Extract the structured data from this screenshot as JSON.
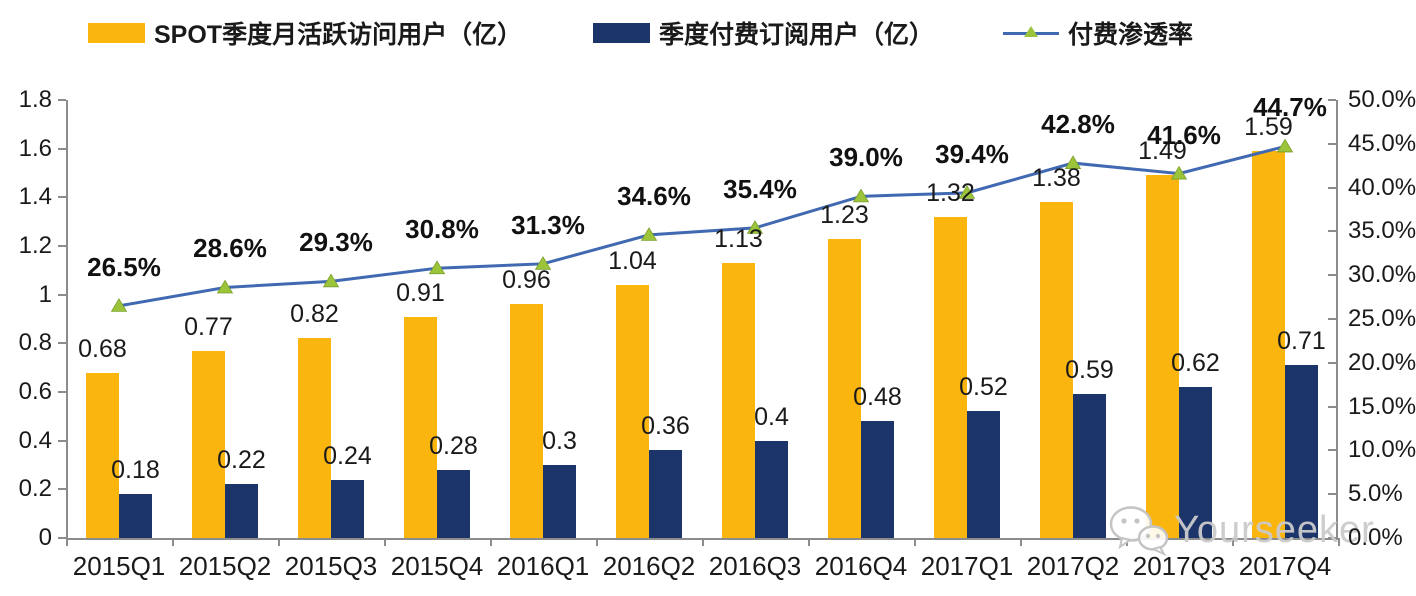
{
  "legend": {
    "items": [
      {
        "label": "SPOT季度月活跃访问用户（亿）",
        "swatch": "bar",
        "color": "#FBB50F"
      },
      {
        "label": "季度付费订阅用户（亿）",
        "swatch": "bar",
        "color": "#1B356B"
      },
      {
        "label": "付费渗透率",
        "swatch": "line-triangle",
        "line_color": "#4169B2",
        "marker_color": "#9BC43B"
      }
    ]
  },
  "chart_data": {
    "type": "bar+line",
    "categories": [
      "2015Q1",
      "2015Q2",
      "2015Q3",
      "2015Q4",
      "2016Q1",
      "2016Q2",
      "2016Q3",
      "2016Q4",
      "2017Q1",
      "2017Q2",
      "2017Q3",
      "2017Q4"
    ],
    "series": [
      {
        "name": "SPOT季度月活跃访问用户（亿）",
        "type": "bar",
        "axis": "left",
        "color": "#FBB50F",
        "values": [
          0.68,
          0.77,
          0.82,
          0.91,
          0.96,
          1.04,
          1.13,
          1.23,
          1.32,
          1.38,
          1.49,
          1.59
        ],
        "labels": [
          "0.68",
          "0.77",
          "0.82",
          "0.91",
          "0.96",
          "1.04",
          "1.13",
          "1.23",
          "1.32",
          "1.38",
          "1.49",
          "1.59"
        ]
      },
      {
        "name": "季度付费订阅用户（亿）",
        "type": "bar",
        "axis": "left",
        "color": "#1B356B",
        "values": [
          0.18,
          0.22,
          0.24,
          0.28,
          0.3,
          0.36,
          0.4,
          0.48,
          0.52,
          0.59,
          0.62,
          0.71
        ],
        "labels": [
          "0.18",
          "0.22",
          "0.24",
          "0.28",
          "0.3",
          "0.36",
          "0.4",
          "0.48",
          "0.52",
          "0.59",
          "0.62",
          "0.71"
        ]
      },
      {
        "name": "付费渗透率",
        "type": "line",
        "axis": "right",
        "color": "#4169B2",
        "marker": "triangle",
        "marker_color": "#9BC43B",
        "values": [
          26.5,
          28.6,
          29.3,
          30.8,
          31.3,
          34.6,
          35.4,
          39.0,
          39.4,
          42.8,
          41.6,
          44.7
        ],
        "labels": [
          "26.5%",
          "28.6%",
          "29.3%",
          "30.8%",
          "31.3%",
          "34.6%",
          "35.4%",
          "39.0%",
          "39.4%",
          "42.8%",
          "41.6%",
          "44.7%"
        ]
      }
    ],
    "left_axis": {
      "min": 0,
      "max": 1.8,
      "ticks": [
        "1.8",
        "1.6",
        "1.4",
        "1.2",
        "1",
        "0.8",
        "0.6",
        "0.4",
        "0.2",
        "0"
      ]
    },
    "right_axis": {
      "min": 0,
      "max": 50,
      "ticks": [
        "50.0%",
        "45.0%",
        "40.0%",
        "35.0%",
        "30.0%",
        "25.0%",
        "20.0%",
        "15.0%",
        "10.0%",
        "5.0%",
        "0.0%"
      ]
    },
    "layout": {
      "grid": false,
      "legend_position": "top",
      "axis_color": "#8C8C8C",
      "label_color": "#1A1A1A"
    }
  },
  "watermark": {
    "text": "Yourseeker",
    "icon": "wechat-icon",
    "color": "#CBCBCB"
  }
}
